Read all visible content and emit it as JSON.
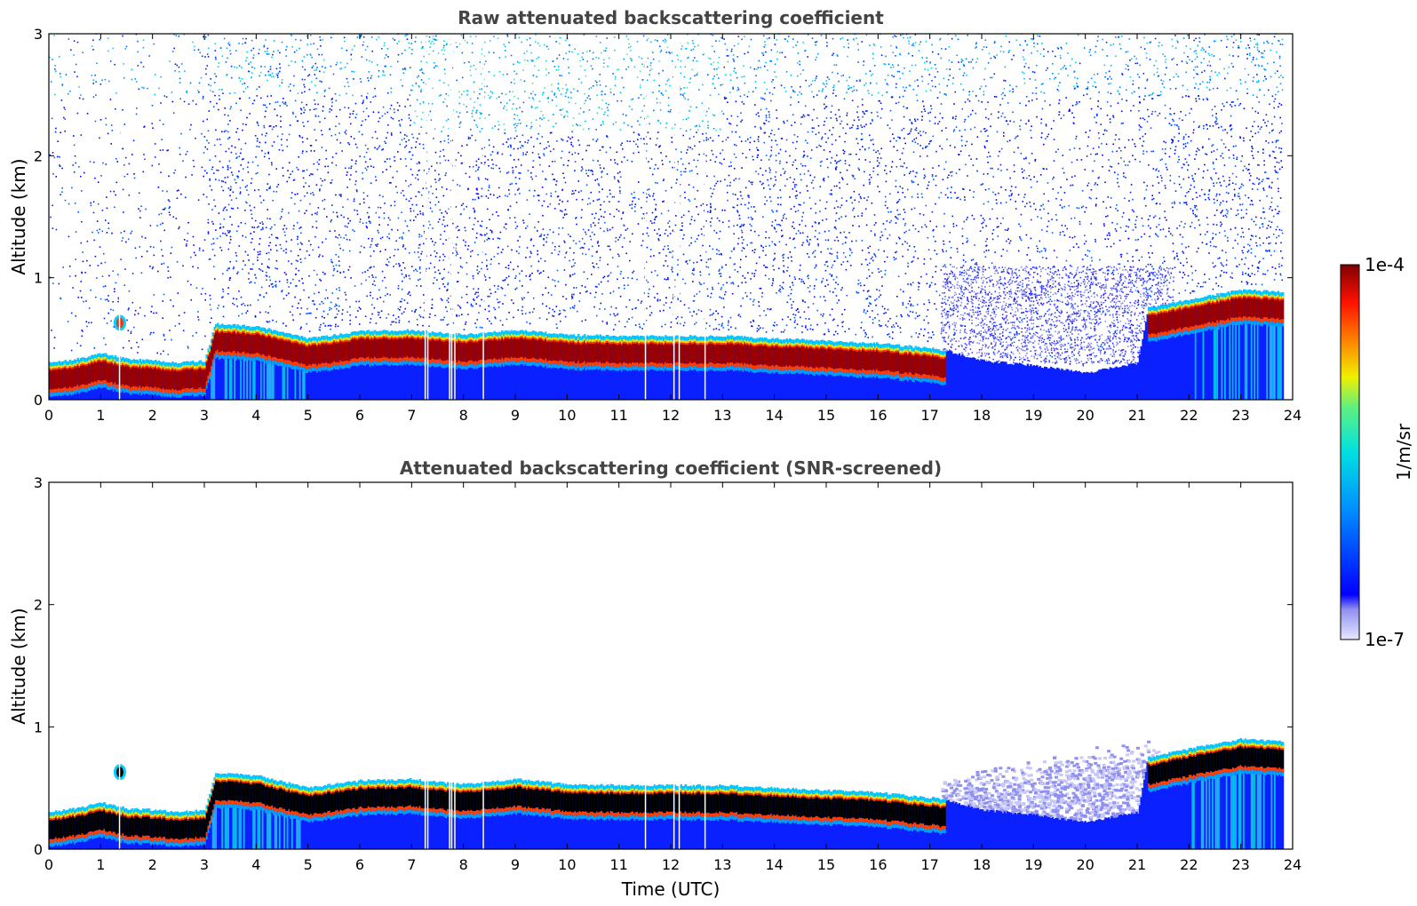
{
  "chart_data": [
    {
      "type": "heatmap",
      "title": "Raw attenuated backscattering coefficient",
      "xlabel": "",
      "ylabel": "Altitude (km)",
      "xlim": [
        0,
        24
      ],
      "ylim": [
        0,
        3
      ],
      "xticks": [
        "0",
        "1",
        "2",
        "3",
        "4",
        "5",
        "6",
        "7",
        "8",
        "9",
        "10",
        "11",
        "12",
        "13",
        "14",
        "15",
        "16",
        "17",
        "18",
        "19",
        "20",
        "21",
        "22",
        "23",
        "24"
      ],
      "yticks": [
        "0",
        "1",
        "2",
        "3"
      ],
      "layer_top_km": [
        [
          0,
          0.3
        ],
        [
          0.5,
          0.33
        ],
        [
          1,
          0.38
        ],
        [
          1.5,
          0.33
        ],
        [
          2,
          0.32
        ],
        [
          2.5,
          0.3
        ],
        [
          3,
          0.32
        ],
        [
          3.2,
          0.62
        ],
        [
          4,
          0.6
        ],
        [
          5,
          0.5
        ],
        [
          6,
          0.56
        ],
        [
          7,
          0.57
        ],
        [
          8,
          0.53
        ],
        [
          9,
          0.57
        ],
        [
          10,
          0.53
        ],
        [
          11,
          0.52
        ],
        [
          12,
          0.52
        ],
        [
          13,
          0.52
        ],
        [
          14,
          0.5
        ],
        [
          15,
          0.48
        ],
        [
          16,
          0.46
        ],
        [
          17,
          0.42
        ],
        [
          17.3,
          0.4
        ],
        [
          18,
          0.32
        ],
        [
          19,
          0.28
        ],
        [
          20,
          0.22
        ],
        [
          21,
          0.3
        ],
        [
          21.2,
          0.75
        ],
        [
          22,
          0.82
        ],
        [
          23,
          0.9
        ],
        [
          23.8,
          0.88
        ]
      ],
      "noise_level": "high"
    },
    {
      "type": "heatmap",
      "title": "Attenuated backscattering coefficient (SNR-screened)",
      "xlabel": "Time (UTC)",
      "ylabel": "Altitude (km)",
      "xlim": [
        0,
        24
      ],
      "ylim": [
        0,
        3
      ],
      "xticks": [
        "0",
        "1",
        "2",
        "3",
        "4",
        "5",
        "6",
        "7",
        "8",
        "9",
        "10",
        "11",
        "12",
        "13",
        "14",
        "15",
        "16",
        "17",
        "18",
        "19",
        "20",
        "21",
        "22",
        "23",
        "24"
      ],
      "yticks": [
        "0",
        "1",
        "2",
        "3"
      ],
      "layer_top_km": [
        [
          0,
          0.3
        ],
        [
          0.5,
          0.33
        ],
        [
          1,
          0.38
        ],
        [
          1.5,
          0.33
        ],
        [
          2,
          0.32
        ],
        [
          2.5,
          0.3
        ],
        [
          3,
          0.32
        ],
        [
          3.2,
          0.62
        ],
        [
          4,
          0.6
        ],
        [
          5,
          0.5
        ],
        [
          6,
          0.56
        ],
        [
          7,
          0.57
        ],
        [
          8,
          0.53
        ],
        [
          9,
          0.57
        ],
        [
          10,
          0.53
        ],
        [
          11,
          0.52
        ],
        [
          12,
          0.52
        ],
        [
          13,
          0.52
        ],
        [
          14,
          0.5
        ],
        [
          15,
          0.48
        ],
        [
          16,
          0.46
        ],
        [
          17,
          0.42
        ],
        [
          17.3,
          0.4
        ],
        [
          18,
          0.32
        ],
        [
          19,
          0.28
        ],
        [
          20,
          0.22
        ],
        [
          21,
          0.3
        ],
        [
          21.2,
          0.75
        ],
        [
          22,
          0.82
        ],
        [
          23,
          0.9
        ],
        [
          23.8,
          0.88
        ]
      ],
      "noise_level": "screened"
    }
  ],
  "colorbar": {
    "label": "1/m/sr",
    "max_label": "1e-4",
    "min_label": "1e-7",
    "colors": [
      "#e8e8ff",
      "#c8c8f8",
      "#8080f0",
      "#0000ff",
      "#0040ff",
      "#0080ff",
      "#00c0ff",
      "#00e8e0",
      "#40f0a0",
      "#a0f050",
      "#f0f000",
      "#ffb000",
      "#ff6000",
      "#ff1000",
      "#d00000",
      "#800000"
    ]
  }
}
